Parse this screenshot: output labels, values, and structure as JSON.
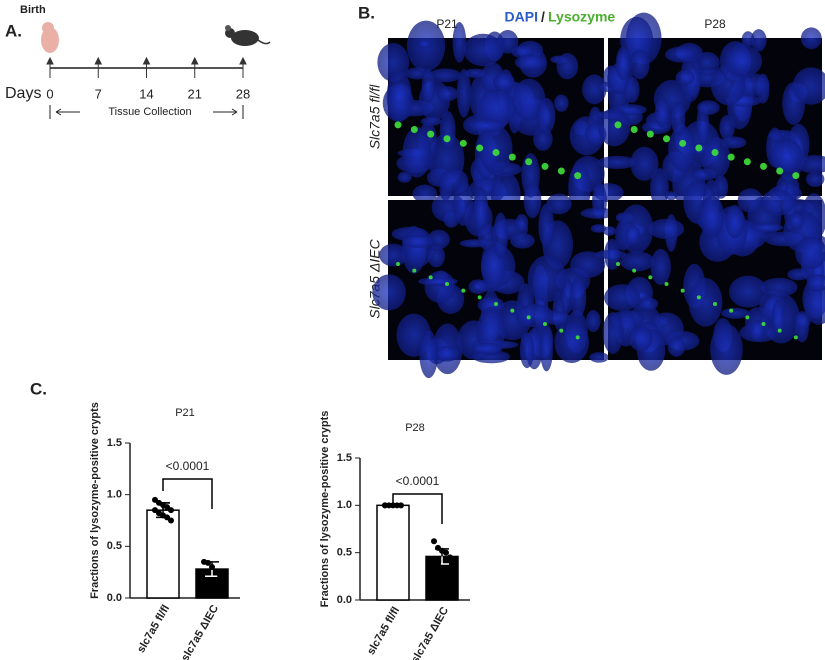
{
  "panel_a": {
    "label": "A.",
    "birth": "Birth",
    "axis_label": "Days",
    "days": [
      0,
      7,
      14,
      21,
      28
    ],
    "collection": "Tissue Collection"
  },
  "panel_b": {
    "label": "B.",
    "stain_1": "DAPI",
    "separator": "/",
    "stain_2": "Lysozyme",
    "columns": [
      "P21",
      "P28"
    ],
    "rows": [
      "Slc7a5 fl/fl",
      "Slc7a5 ΔIEC"
    ]
  },
  "panel_c": {
    "label": "C."
  },
  "chart_data": [
    {
      "type": "bar",
      "title": "P21",
      "y_label": "Fractions of lysozyme-positive crypts",
      "categories": [
        "slc7a5 fl/fl",
        "slc7a5 ΔIEC"
      ],
      "values": [
        0.85,
        0.28
      ],
      "errors": [
        0.07,
        0.07
      ],
      "colors": [
        "#ffffff",
        "#000000"
      ],
      "points": [
        [
          0.95,
          0.92,
          0.9,
          0.88,
          0.85,
          0.85,
          0.82,
          0.8,
          0.78,
          0.75
        ],
        [
          0.35,
          0.34,
          0.3,
          0.25,
          0.22
        ]
      ],
      "annotation": "<0.0001",
      "ylim": [
        0,
        1.5
      ],
      "yticks": [
        {
          "value": 0,
          "label": "0.0"
        },
        {
          "value": 0.5,
          "label": "0.5"
        },
        {
          "value": 1,
          "label": "1.0"
        },
        {
          "value": 1.5,
          "label": "1.5"
        }
      ]
    },
    {
      "type": "bar",
      "title": "P28",
      "y_label": "Fractions of lysozyme-positive crypts",
      "categories": [
        "slc7a5 fl/fl",
        "slc7a5 ΔIEC"
      ],
      "values": [
        1.0,
        0.46
      ],
      "errors": [
        0.01,
        0.08
      ],
      "colors": [
        "#ffffff",
        "#000000"
      ],
      "points": [
        [
          1.0,
          1.0,
          1.0,
          1.0,
          1.0,
          1.0
        ],
        [
          0.62,
          0.55,
          0.52,
          0.5,
          0.45,
          0.4,
          0.38
        ]
      ],
      "annotation": "<0.0001",
      "ylim": [
        0,
        1.5
      ],
      "yticks": [
        {
          "value": 0,
          "label": "0.0"
        },
        {
          "value": 0.5,
          "label": "0.5"
        },
        {
          "value": 1,
          "label": "1.0"
        },
        {
          "value": 1.5,
          "label": "1.5"
        }
      ]
    }
  ]
}
